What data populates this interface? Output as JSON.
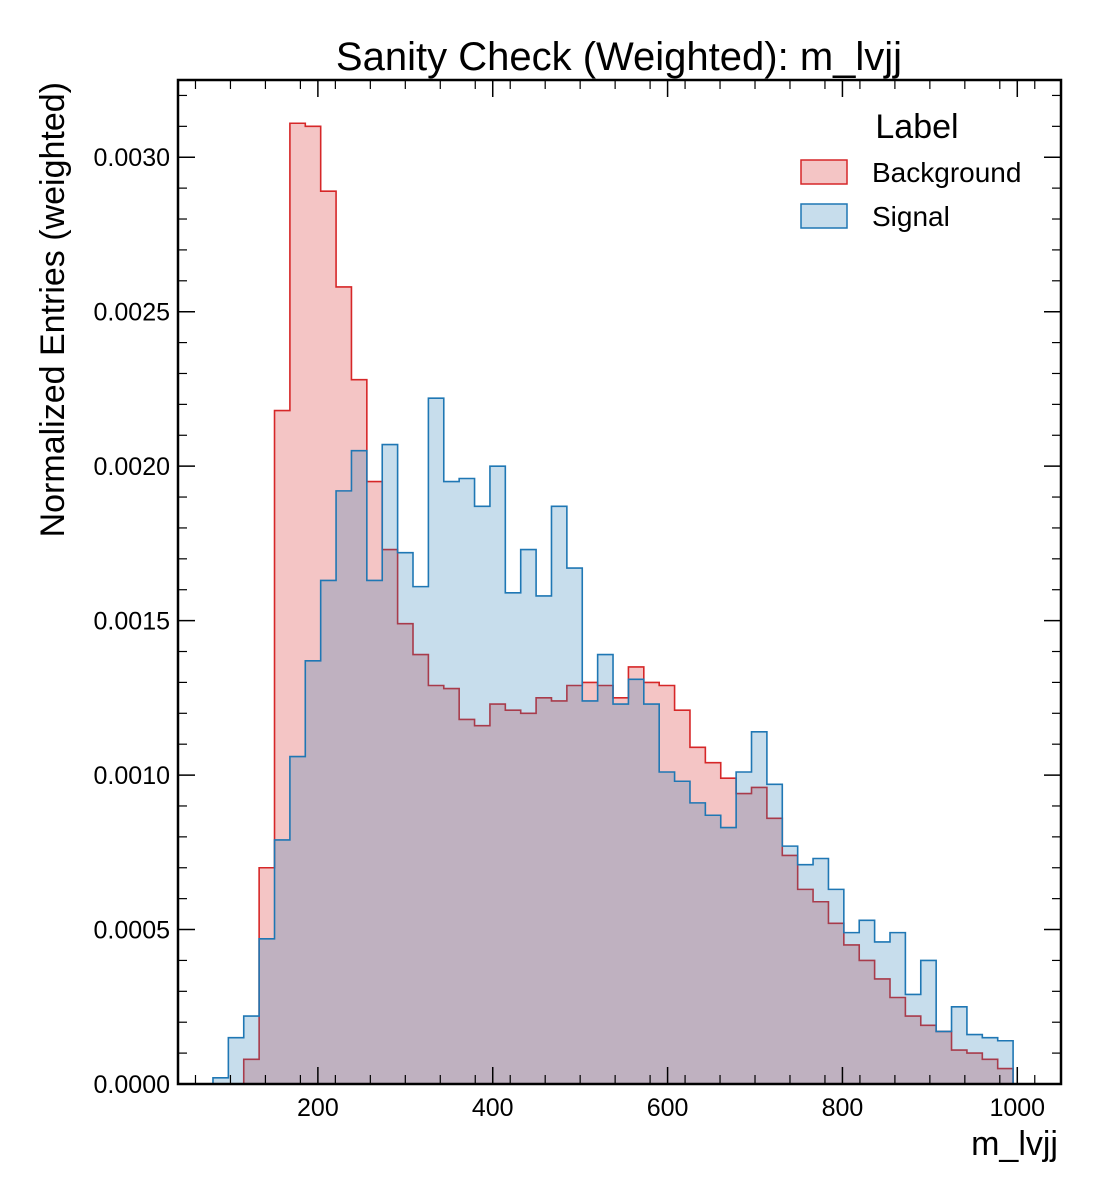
{
  "chart_data": {
    "type": "histogram",
    "title": "Sanity Check (Weighted): m_lvjj",
    "xlabel": "m_lvjj",
    "ylabel": "Normalized Entries (weighted)",
    "xlim": [
      40,
      1050
    ],
    "ylim": [
      0,
      0.00325
    ],
    "x_ticks": [
      200,
      400,
      600,
      800,
      1000
    ],
    "y_ticks": [
      0.0,
      0.0005,
      0.001,
      0.0015,
      0.002,
      0.0025,
      0.003
    ],
    "y_tick_labels": [
      "0.0000",
      "0.0005",
      "0.0010",
      "0.0015",
      "0.0020",
      "0.0025",
      "0.0030"
    ],
    "x_tick_labels": [
      "200",
      "400",
      "600",
      "800",
      "1000"
    ],
    "grid": false,
    "legend": {
      "title": "Label",
      "placement": "upper right"
    },
    "bin_edges": [
      80,
      97.6,
      115.2,
      132.8,
      150.4,
      168,
      185.6,
      203.2,
      220.8,
      238.4,
      256,
      273.6,
      291.2,
      308.8,
      326.4,
      344,
      361.6,
      379.2,
      396.8,
      414.4,
      432,
      449.6,
      467.2,
      484.8,
      502.4,
      520,
      537.6,
      555.2,
      572.8,
      590.4,
      608,
      625.6,
      643.2,
      660.8,
      678.4,
      696,
      713.6,
      731.2,
      748.8,
      766.4,
      784,
      801.6,
      819.2,
      836.8,
      854.4,
      872,
      889.6,
      907.2,
      924.8,
      942.4,
      960,
      977.6,
      995.2
    ],
    "series": [
      {
        "name": "Background",
        "color": "#d62728",
        "fill": "rgba(214,39,40,0.27)",
        "values": [
          0,
          0,
          8e-05,
          0.0007,
          0.00218,
          0.00311,
          0.0031,
          0.00289,
          0.00258,
          0.00228,
          0.00195,
          0.00173,
          0.00149,
          0.00139,
          0.00129,
          0.00128,
          0.00118,
          0.00116,
          0.00123,
          0.00121,
          0.0012,
          0.00125,
          0.00124,
          0.00129,
          0.0013,
          0.00129,
          0.00125,
          0.00135,
          0.0013,
          0.00129,
          0.00121,
          0.00109,
          0.00104,
          0.00099,
          0.00094,
          0.00096,
          0.00086,
          0.00074,
          0.00063,
          0.00059,
          0.00052,
          0.00045,
          0.0004,
          0.00034,
          0.00028,
          0.00022,
          0.00019,
          0.00017,
          0.00011,
          0.0001,
          8e-05,
          5e-05
        ]
      },
      {
        "name": "Signal",
        "color": "#1f77b4",
        "fill": "rgba(31,119,180,0.25)",
        "values": [
          2e-05,
          0.00015,
          0.00022,
          0.00047,
          0.00079,
          0.00106,
          0.00137,
          0.00163,
          0.00192,
          0.00205,
          0.00163,
          0.00207,
          0.00172,
          0.00161,
          0.00222,
          0.00195,
          0.00196,
          0.00187,
          0.002,
          0.00159,
          0.00173,
          0.00158,
          0.00187,
          0.00167,
          0.00124,
          0.00139,
          0.00123,
          0.00131,
          0.00123,
          0.00101,
          0.00098,
          0.00091,
          0.00087,
          0.00083,
          0.00101,
          0.00114,
          0.00097,
          0.00077,
          0.00071,
          0.00073,
          0.00063,
          0.00049,
          0.00053,
          0.00046,
          0.00049,
          0.00029,
          0.0004,
          0.00017,
          0.00025,
          0.00016,
          0.00015,
          0.00014
        ]
      }
    ]
  }
}
